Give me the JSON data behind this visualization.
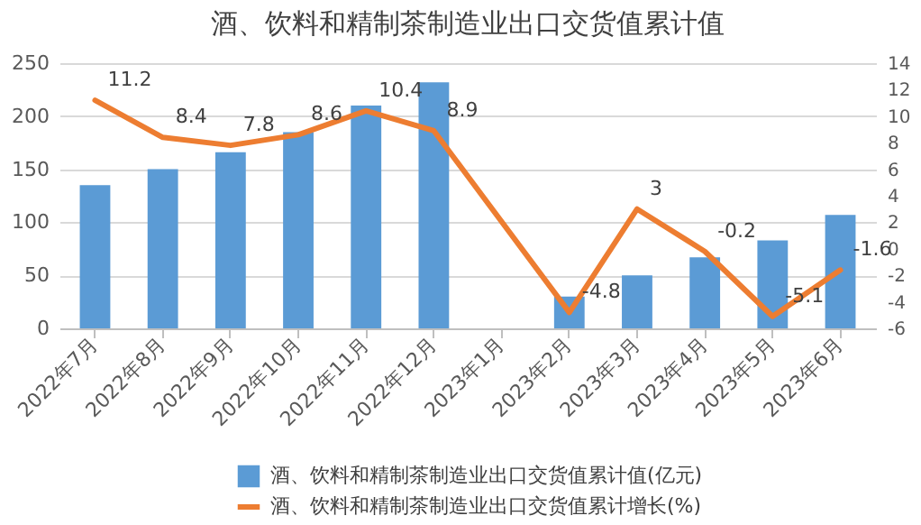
{
  "chart_data": {
    "type": "bar",
    "title": "酒、饮料和精制茶制造业出口交货值累计值",
    "categories": [
      "2022年7月",
      "2022年8月",
      "2022年9月",
      "2022年10月",
      "2022年11月",
      "2022年12月",
      "2023年1月",
      "2023年2月",
      "2023年3月",
      "2023年4月",
      "2023年5月",
      "2023年6月"
    ],
    "series": [
      {
        "name": "酒、饮料和精制茶制造业出口交货值累计值(亿元)",
        "color": "#5b9bd5",
        "values": [
          135,
          150,
          166,
          185,
          210,
          232,
          null,
          30,
          50,
          67,
          83,
          107
        ]
      },
      {
        "name": "酒、饮料和精制茶制造业出口交货值累计增长(%)",
        "type": "line",
        "axis": "y2",
        "color": "#ed7d31",
        "data_labels": true,
        "values": [
          11.2,
          8.4,
          7.8,
          8.6,
          10.4,
          8.9,
          null,
          -4.8,
          3,
          -0.2,
          -5.1,
          -1.6
        ]
      }
    ],
    "ylim": [
      0,
      250
    ],
    "yticks": [
      0,
      50,
      100,
      150,
      200,
      250
    ],
    "y2lim": [
      -6,
      14
    ],
    "y2ticks": [
      -6,
      -4,
      -2,
      0,
      2,
      4,
      6,
      8,
      10,
      12,
      14
    ],
    "grid": "y",
    "legend": "bottom"
  }
}
